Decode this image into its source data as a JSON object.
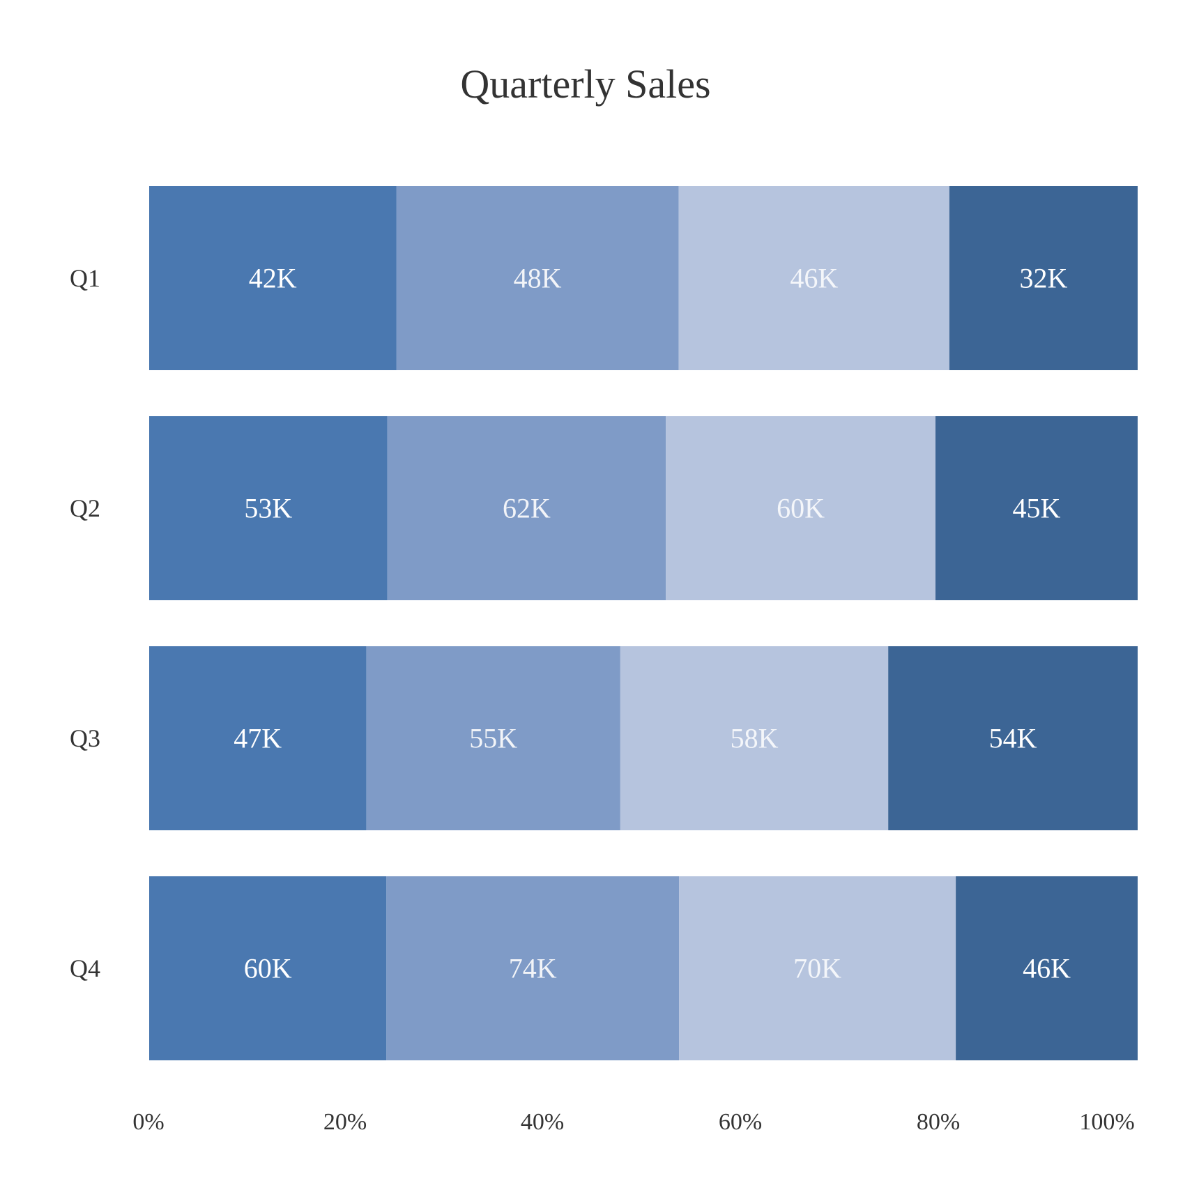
{
  "chart_data": {
    "type": "bar",
    "orientation": "horizontal",
    "stacking": "percent",
    "title": "Quarterly Sales",
    "xlabel": "",
    "ylabel": "",
    "categories": [
      "Q1",
      "Q2",
      "Q3",
      "Q4"
    ],
    "series": [
      {
        "values": [
          42,
          53,
          47,
          60
        ],
        "labels": [
          "42K",
          "53K",
          "47K",
          "60K"
        ]
      },
      {
        "values": [
          48,
          62,
          55,
          74
        ],
        "labels": [
          "48K",
          "62K",
          "55K",
          "74K"
        ]
      },
      {
        "values": [
          46,
          60,
          58,
          70
        ],
        "labels": [
          "46K",
          "60K",
          "58K",
          "70K"
        ]
      },
      {
        "values": [
          32,
          45,
          54,
          46
        ],
        "labels": [
          "32K",
          "45K",
          "54K",
          "46K"
        ]
      }
    ],
    "x_ticks": [
      "0%",
      "20%",
      "40%",
      "60%",
      "80%",
      "100%"
    ],
    "xlim": [
      0,
      100
    ],
    "grid": false,
    "legend": "none",
    "colors": [
      "#4a78b0",
      "#7f9bc7",
      "#b6c4de",
      "#3c6595"
    ],
    "label_colors": [
      "#ffffff",
      "#f2f4f8",
      "#f4f6fa",
      "#ffffff"
    ]
  }
}
